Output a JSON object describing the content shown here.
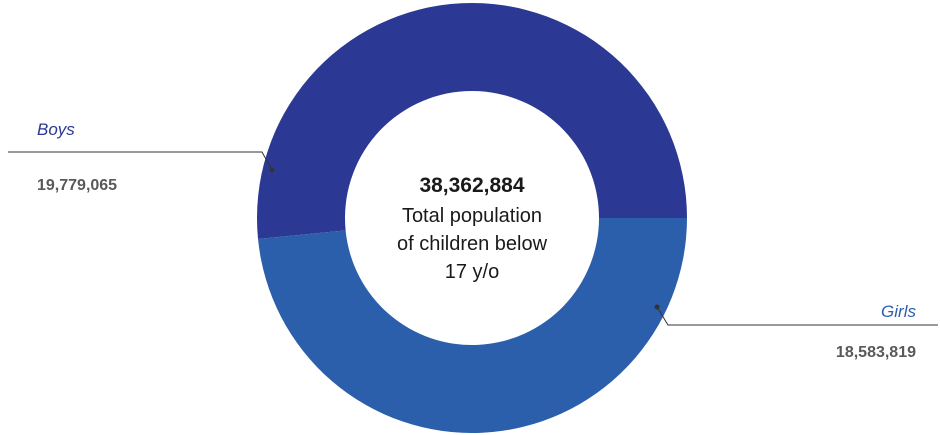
{
  "chart_data": {
    "type": "pie",
    "donut": true,
    "slices": [
      {
        "label": "Boys",
        "value": 19779065,
        "value_label": "19,779,065",
        "color": "#2b3894"
      },
      {
        "label": "Girls",
        "value": 18583819,
        "value_label": "18,583,819",
        "color": "#2c5fab"
      }
    ],
    "center": {
      "total": "38,362,884",
      "lines": [
        "Total population",
        "of children below",
        "17 y/o"
      ]
    },
    "label_colors": {
      "name": "#2b3894",
      "girls_name": "#2c5fab",
      "value": "#595959",
      "leader": "#333333"
    }
  }
}
